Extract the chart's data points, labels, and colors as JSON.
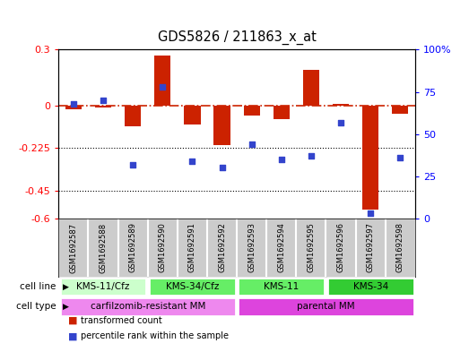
{
  "title": "GDS5826 / 211863_x_at",
  "samples": [
    "GSM1692587",
    "GSM1692588",
    "GSM1692589",
    "GSM1692590",
    "GSM1692591",
    "GSM1692592",
    "GSM1692593",
    "GSM1692594",
    "GSM1692595",
    "GSM1692596",
    "GSM1692597",
    "GSM1692598"
  ],
  "bar_values": [
    -0.02,
    -0.01,
    -0.11,
    0.27,
    -0.1,
    -0.21,
    -0.05,
    -0.07,
    0.19,
    0.01,
    -0.55,
    -0.04
  ],
  "dot_values": [
    0.68,
    0.7,
    0.32,
    0.78,
    0.34,
    0.3,
    0.44,
    0.35,
    0.37,
    0.57,
    0.03,
    0.36
  ],
  "bar_color": "#cc2200",
  "dot_color": "#3344cc",
  "ylim_left": [
    -0.6,
    0.3
  ],
  "ylim_right": [
    0,
    1.0
  ],
  "yticks_left": [
    -0.6,
    -0.45,
    -0.225,
    0,
    0.3
  ],
  "ytick_labels_left": [
    "-0.6",
    "-0.45",
    "-0.225",
    "0",
    "0.3"
  ],
  "yticks_right": [
    0,
    0.25,
    0.5,
    0.75,
    1.0
  ],
  "ytick_labels_right": [
    "0",
    "25",
    "50",
    "75",
    "100%"
  ],
  "hline_y": 0,
  "dotted_hlines": [
    -0.225,
    -0.45
  ],
  "cell_line_groups": [
    {
      "label": "KMS-11/Cfz",
      "start": 0,
      "end": 3,
      "color": "#ccffcc"
    },
    {
      "label": "KMS-34/Cfz",
      "start": 3,
      "end": 6,
      "color": "#66ee66"
    },
    {
      "label": "KMS-11",
      "start": 6,
      "end": 9,
      "color": "#66ee66"
    },
    {
      "label": "KMS-34",
      "start": 9,
      "end": 12,
      "color": "#33cc33"
    }
  ],
  "cell_type_groups": [
    {
      "label": "carfilzomib-resistant MM",
      "start": 0,
      "end": 6,
      "color": "#ee88ee"
    },
    {
      "label": "parental MM",
      "start": 6,
      "end": 12,
      "color": "#dd44dd"
    }
  ],
  "cell_line_label": "cell line",
  "cell_type_label": "cell type",
  "legend_items": [
    {
      "label": "transformed count",
      "color": "#cc2200"
    },
    {
      "label": "percentile rank within the sample",
      "color": "#3344cc"
    }
  ],
  "sample_box_color": "#cccccc",
  "sample_box_border": "#ffffff"
}
